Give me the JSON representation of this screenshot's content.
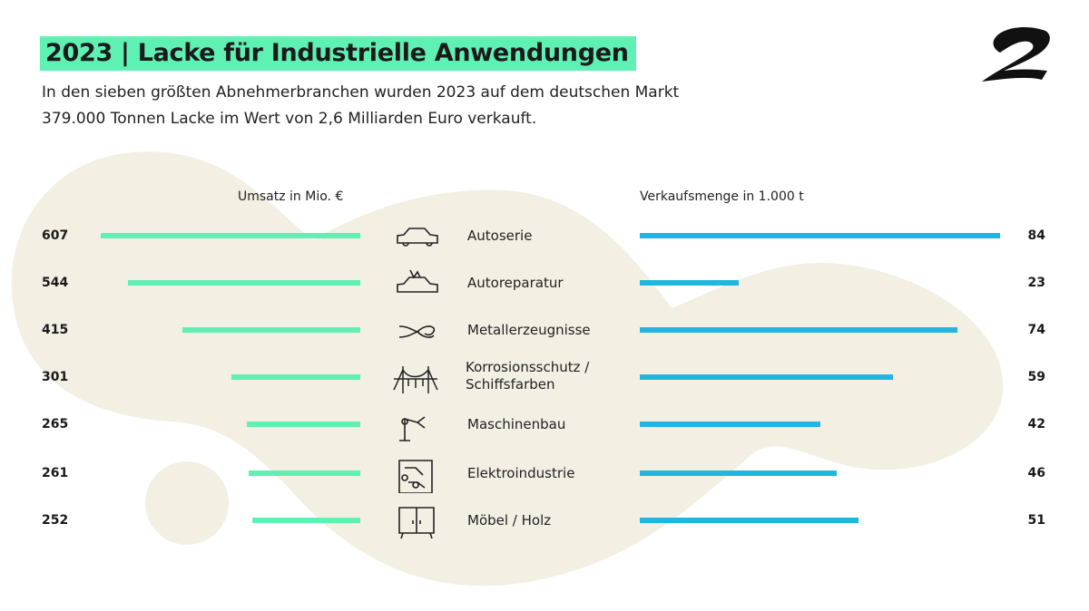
{
  "title": "2023 | Lacke für Industrielle Anwendungen",
  "subtitle_lines": [
    "In den sieben größten Abnehmerbranchen wurden 2023 auf dem deutschen Markt",
    "379.000 Tonnen Lacke im Wert von 2,6 Milliarden Euro verkauft."
  ],
  "colors": {
    "accent": "#5ff0b4",
    "blue": "#1fb6e0",
    "blob": "#f3efe3"
  },
  "chart_data": {
    "type": "bar",
    "title": "2023 | Lacke für Industrielle Anwendungen",
    "categories": [
      "Autoserie",
      "Autoreparatur",
      "Metallerzeugnisse",
      "Korrosionsschutz / Schiffsfarben",
      "Maschinenbau",
      "Elektroindustrie",
      "Möbel / Holz"
    ],
    "category_icons": [
      "car-icon",
      "damaged-car-icon",
      "pliers-icon",
      "bridge-icon",
      "robot-arm-icon",
      "circuit-board-icon",
      "cabinet-icon"
    ],
    "series": [
      {
        "name": "Umsatz in Mio. €",
        "values": [
          607,
          544,
          415,
          301,
          265,
          261,
          252
        ],
        "color": "#5ff0b4"
      },
      {
        "name": "Verkaufsmenge in 1.000 t",
        "values": [
          84,
          23,
          74,
          59,
          42,
          46,
          51
        ],
        "color": "#1fb6e0"
      }
    ],
    "legend": "above-bars"
  }
}
